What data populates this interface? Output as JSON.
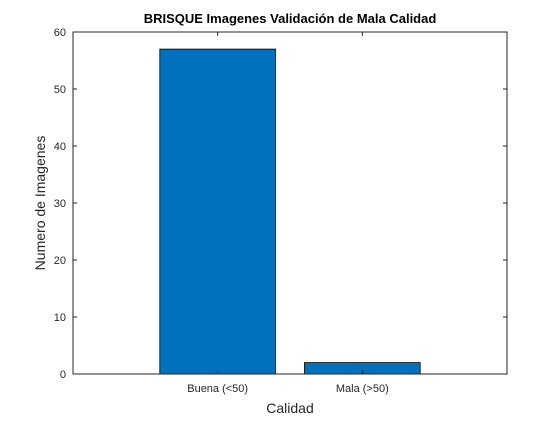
{
  "chart_data": {
    "type": "bar",
    "title": "BRISQUE Imagenes Validación de Mala Calidad",
    "xlabel": "Calidad",
    "ylabel": "Numero de Imagenes",
    "categories": [
      "Buena (<50)",
      "Mala (>50)"
    ],
    "values": [
      57,
      2
    ],
    "ylim": [
      0,
      60
    ],
    "yticks": [
      0,
      10,
      20,
      30,
      40,
      50,
      60
    ],
    "grid": false,
    "bar_color": "#0072BD"
  }
}
